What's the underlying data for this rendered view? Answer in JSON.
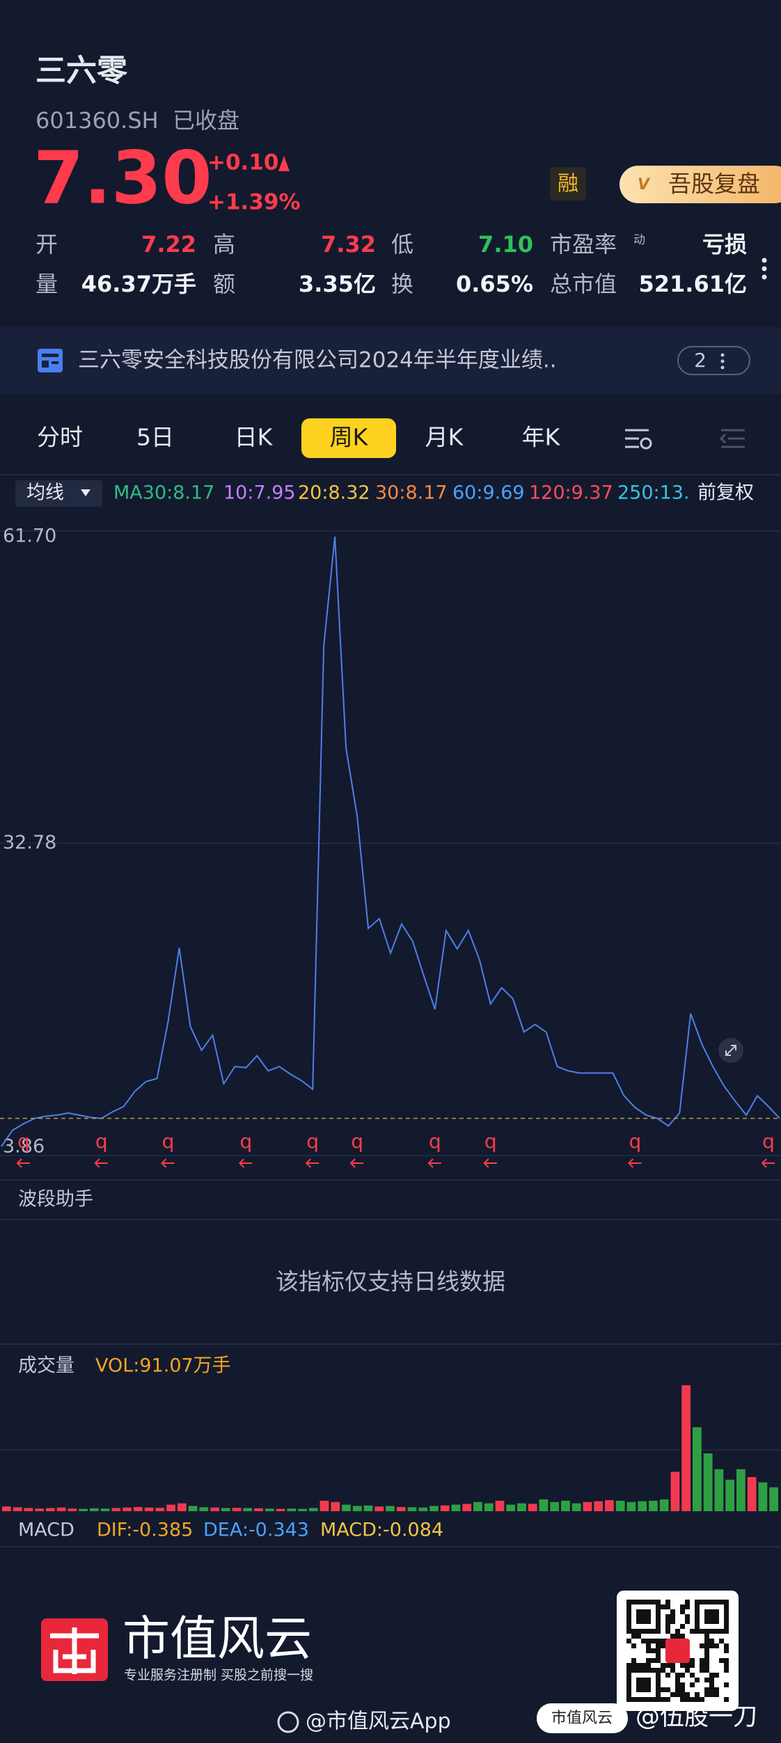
{
  "header": {
    "name": "三六零",
    "code": "601360.SH",
    "status": "已收盘"
  },
  "quote": {
    "price": {
      "value": 7.3,
      "label": "7.30"
    },
    "change": "+0.10",
    "change_pct": "+1.39%",
    "up_color": "#ff3b4e",
    "margin_tag": "融",
    "vip_button": "吾股复盘",
    "stats": [
      {
        "label": "开",
        "value": "7.22",
        "color": "#ff3b4e"
      },
      {
        "label": "高",
        "value": "7.32",
        "color": "#ff3b4e"
      },
      {
        "label": "低",
        "value": "7.10",
        "color": "#2ec25b"
      },
      {
        "label": "市盈率",
        "sup": "动",
        "value": "亏损",
        "color": "#f2f4f8"
      },
      {
        "label": "量",
        "value": "46.37万手",
        "color": "#f2f4f8"
      },
      {
        "label": "额",
        "value": "3.35亿",
        "color": "#f2f4f8"
      },
      {
        "label": "换",
        "value": "0.65%",
        "color": "#f2f4f8"
      },
      {
        "label": "总市值",
        "value": "521.61亿",
        "color": "#f2f4f8"
      }
    ]
  },
  "notice": {
    "text": "三六零安全科技股份有限公司2024年半年度业绩..",
    "count": "2"
  },
  "tabs": {
    "items": [
      "分时",
      "5日",
      "日K",
      "周K",
      "月K",
      "年K"
    ],
    "active": 3
  },
  "ma_bar": {
    "selector": "均线",
    "items": [
      {
        "text": "MA30:8.17",
        "color": "#2ebd85"
      },
      {
        "text": "10:7.95",
        "color": "#c77dff"
      },
      {
        "text": "20:8.32",
        "color": "#f5c542"
      },
      {
        "text": "30:8.17",
        "color": "#ff8a3d"
      },
      {
        "text": "60:9.69",
        "color": "#4aa3ff"
      },
      {
        "text": "120:9.37",
        "color": "#ff4d5e"
      },
      {
        "text": "250:13.",
        "color": "#38c5e0"
      }
    ],
    "adjust": "前复权"
  },
  "chart_data": [
    {
      "type": "line",
      "color": "#4f7fe8",
      "values": [
        4.7,
        6.2,
        6.8,
        7.3,
        7.5,
        7.6,
        7.8,
        7.6,
        7.4,
        7.3,
        7.9,
        8.4,
        9.8,
        10.7,
        11.0,
        16.3,
        23.1,
        15.8,
        13.6,
        15.0,
        10.5,
        12.1,
        12.0,
        13.1,
        11.7,
        12.1,
        11.4,
        10.8,
        10.0,
        51.1,
        61.2,
        41.6,
        35.3,
        24.9,
        25.8,
        22.6,
        25.3,
        23.7,
        20.5,
        17.4,
        24.7,
        23.0,
        24.7,
        22.0,
        17.9,
        19.4,
        18.4,
        15.3,
        16.0,
        15.3,
        12.1,
        11.7,
        11.5,
        11.5,
        11.5,
        11.5,
        9.4,
        8.3,
        7.6,
        7.3,
        6.6,
        7.8,
        17.0,
        14.2,
        12.1,
        10.3,
        8.9,
        7.6,
        9.4,
        8.4,
        7.3
      ],
      "ylim": [
        3.86,
        61.7
      ],
      "yticks": [
        {
          "value": 61.7,
          "label": "61.70"
        },
        32.78,
        3.86
      ],
      "signal_label": "q",
      "signal_color": "#ff3b4e",
      "signals": [
        2,
        9,
        15,
        22,
        28,
        32,
        39,
        44,
        57,
        69
      ]
    },
    {
      "type": "bar",
      "title": "成交量",
      "label": "VOL:91.07万手",
      "up_color": "#f23a4f",
      "down_color": "#2ea043",
      "values": [
        18,
        15,
        12,
        10,
        12,
        14,
        10,
        9,
        11,
        10,
        12,
        14,
        16,
        14,
        13,
        25,
        30,
        20,
        15,
        14,
        12,
        13,
        12,
        11,
        10,
        9,
        10,
        9,
        12,
        40,
        35,
        25,
        20,
        22,
        18,
        20,
        16,
        15,
        14,
        20,
        22,
        25,
        28,
        35,
        30,
        40,
        25,
        30,
        28,
        45,
        35,
        40,
        30,
        35,
        38,
        42,
        40,
        35,
        38,
        40,
        45,
        150,
        480,
        320,
        220,
        160,
        120,
        160,
        130,
        110,
        91.07
      ]
    }
  ],
  "wave": {
    "title": "波段助手",
    "message": "该指标仅支持日线数据"
  },
  "macd": {
    "title": "MACD",
    "dif": "DIF:-0.385",
    "dea": "DEA:-0.343",
    "macd": "MACD:-0.084"
  },
  "footer": {
    "brand": "市值风云",
    "slogan": "专业服务注册制 买股之前搜一搜",
    "weibo": "@市值风云App",
    "qr_tag": "市值风云",
    "handle": "@伍股一刀"
  }
}
